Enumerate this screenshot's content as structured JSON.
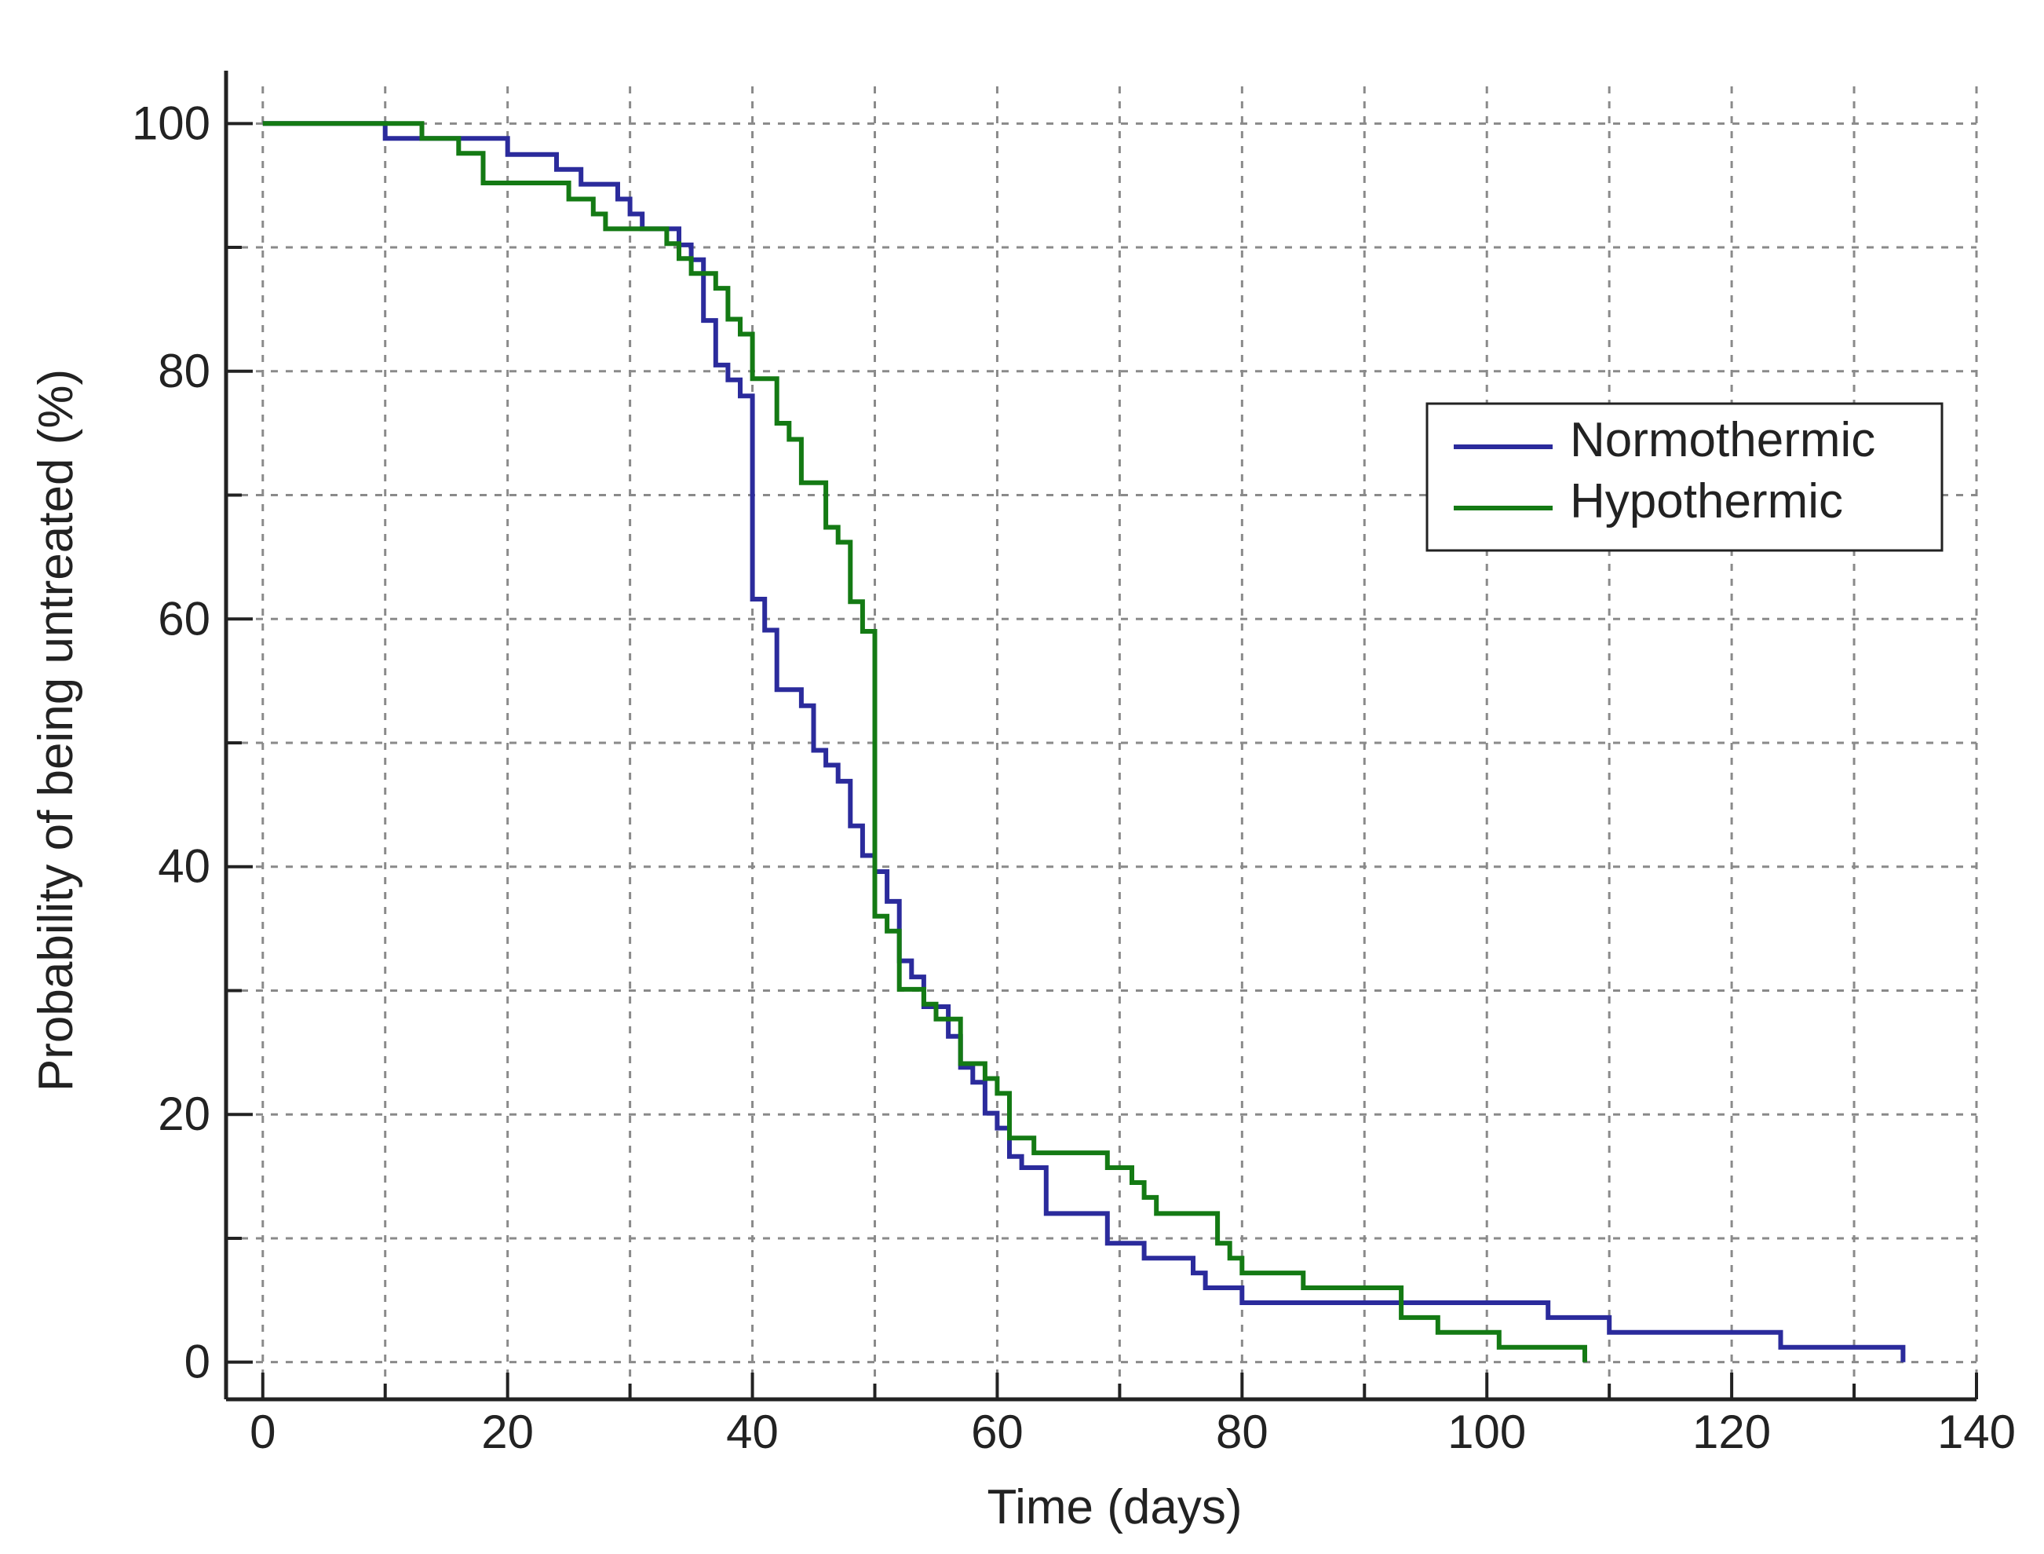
{
  "chart_data": {
    "type": "line",
    "subtype": "kaplan-meier-step",
    "xlabel": "Time (days)",
    "ylabel": "Probability of being untreated (%)",
    "xlim": [
      -3,
      140
    ],
    "ylim": [
      -3,
      103
    ],
    "xticks": [
      0,
      20,
      40,
      60,
      80,
      100,
      120,
      140
    ],
    "yticks": [
      0,
      20,
      40,
      60,
      80,
      100
    ],
    "x_minor_step": 10,
    "y_minor_step": 10,
    "grid": true,
    "legend_position": "top-right",
    "series": [
      {
        "name": "Normothermic",
        "color": "#2b2b9c",
        "steps": [
          [
            0,
            100
          ],
          [
            10,
            98.8
          ],
          [
            20,
            97.5
          ],
          [
            24,
            96.3
          ],
          [
            26,
            95.1
          ],
          [
            29,
            93.9
          ],
          [
            30,
            92.7
          ],
          [
            31,
            91.5
          ],
          [
            34,
            90.2
          ],
          [
            35,
            89.0
          ],
          [
            36,
            87.8
          ],
          [
            36,
            84.1
          ],
          [
            37,
            81.7
          ],
          [
            37,
            80.5
          ],
          [
            38,
            79.3
          ],
          [
            39,
            78.0
          ],
          [
            40,
            61.6
          ],
          [
            41,
            59.1
          ],
          [
            42,
            54.3
          ],
          [
            44,
            53.0
          ],
          [
            45,
            49.4
          ],
          [
            46,
            48.2
          ],
          [
            47,
            46.9
          ],
          [
            48,
            43.3
          ],
          [
            49,
            40.9
          ],
          [
            50,
            39.6
          ],
          [
            51,
            37.2
          ],
          [
            52,
            32.4
          ],
          [
            53,
            31.1
          ],
          [
            54,
            28.7
          ],
          [
            56,
            26.3
          ],
          [
            57,
            23.8
          ],
          [
            58,
            22.6
          ],
          [
            59,
            20.1
          ],
          [
            60,
            18.9
          ],
          [
            61,
            16.6
          ],
          [
            62,
            15.7
          ],
          [
            64,
            12.0
          ],
          [
            69,
            9.6
          ],
          [
            72,
            8.4
          ],
          [
            76,
            7.2
          ],
          [
            77,
            6.0
          ],
          [
            80,
            4.8
          ],
          [
            105,
            3.6
          ],
          [
            110,
            2.4
          ],
          [
            124,
            1.2
          ],
          [
            134,
            0
          ]
        ]
      },
      {
        "name": "Hypothermic",
        "color": "#147a14",
        "steps": [
          [
            0,
            100
          ],
          [
            13,
            98.8
          ],
          [
            16,
            97.6
          ],
          [
            18,
            95.2
          ],
          [
            25,
            93.9
          ],
          [
            27,
            92.7
          ],
          [
            28,
            91.5
          ],
          [
            33,
            90.3
          ],
          [
            34,
            89.1
          ],
          [
            35,
            87.9
          ],
          [
            37,
            86.7
          ],
          [
            38,
            84.2
          ],
          [
            39,
            83.0
          ],
          [
            40,
            79.4
          ],
          [
            42,
            75.8
          ],
          [
            43,
            74.5
          ],
          [
            44,
            71.0
          ],
          [
            46,
            67.4
          ],
          [
            47,
            66.2
          ],
          [
            48,
            61.4
          ],
          [
            49,
            59.0
          ],
          [
            50,
            36.0
          ],
          [
            51,
            34.8
          ],
          [
            52,
            30.1
          ],
          [
            54,
            28.9
          ],
          [
            55,
            27.7
          ],
          [
            57,
            24.1
          ],
          [
            59,
            22.9
          ],
          [
            60,
            21.7
          ],
          [
            61,
            18.1
          ],
          [
            63,
            16.9
          ],
          [
            69,
            15.7
          ],
          [
            71,
            14.5
          ],
          [
            72,
            13.3
          ],
          [
            73,
            12.0
          ],
          [
            78,
            9.6
          ],
          [
            79,
            8.4
          ],
          [
            80,
            7.2
          ],
          [
            85,
            6.0
          ],
          [
            93,
            3.6
          ],
          [
            96,
            2.4
          ],
          [
            101,
            1.2
          ],
          [
            108,
            0
          ]
        ]
      }
    ]
  }
}
